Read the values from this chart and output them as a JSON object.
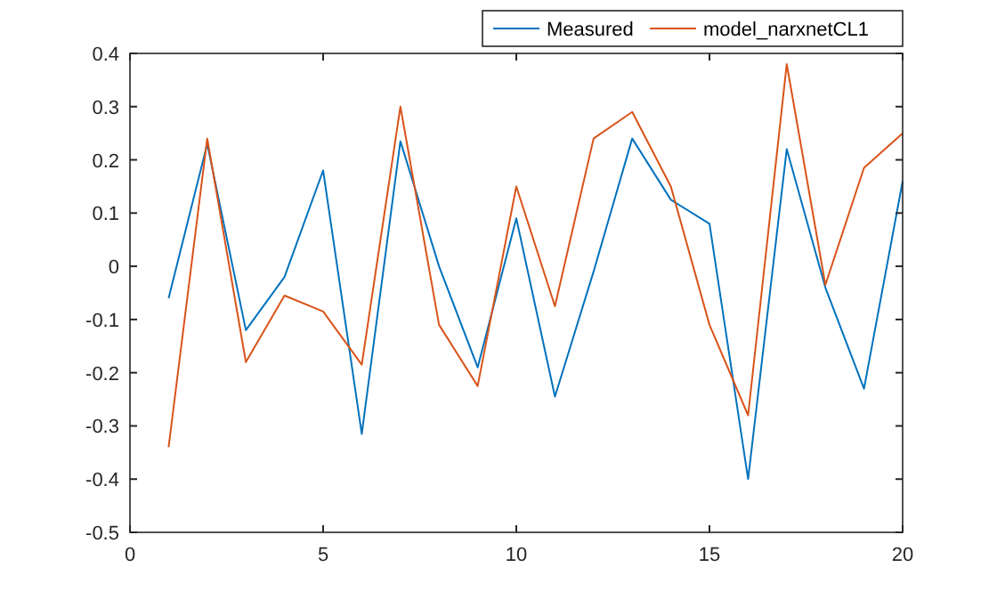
{
  "chart_data": {
    "type": "line",
    "x": [
      1,
      2,
      3,
      4,
      5,
      6,
      7,
      8,
      9,
      10,
      11,
      12,
      13,
      14,
      15,
      16,
      17,
      18,
      19,
      20
    ],
    "series": [
      {
        "name": "Measured",
        "color": "#0072bd",
        "values": [
          -0.06,
          0.23,
          -0.12,
          -0.02,
          0.18,
          -0.315,
          0.235,
          0.0,
          -0.19,
          0.09,
          -0.245,
          -0.01,
          0.24,
          0.125,
          0.08,
          -0.4,
          0.22,
          -0.04,
          -0.23,
          0.16
        ]
      },
      {
        "name": "model_narxnetCL1",
        "color": "#d95319",
        "values": [
          -0.34,
          0.24,
          -0.18,
          -0.055,
          -0.085,
          -0.185,
          0.3,
          -0.11,
          -0.225,
          0.15,
          -0.075,
          0.24,
          0.29,
          0.15,
          -0.11,
          -0.28,
          0.38,
          -0.035,
          0.185,
          0.25
        ]
      }
    ],
    "xlim": [
      0,
      20
    ],
    "xticks": [
      0,
      5,
      10,
      15,
      20
    ],
    "ylim": [
      -0.5,
      0.4
    ],
    "yticks": [
      -0.5,
      -0.4,
      -0.3,
      -0.2,
      -0.1,
      0,
      0.1,
      0.2,
      0.3,
      0.4
    ],
    "legend": "top",
    "grid": false,
    "marker": "none",
    "line_style": "solid"
  }
}
